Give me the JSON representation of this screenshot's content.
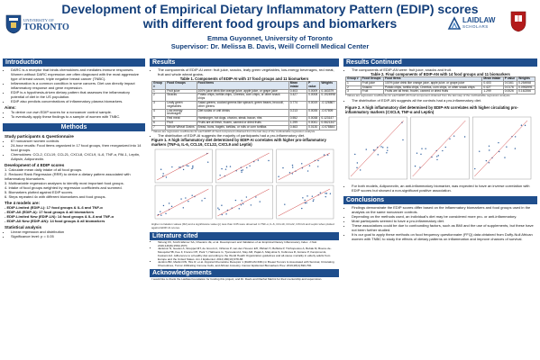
{
  "header": {
    "title_line1": "Development of Empirical Dietary Inflammatory Pattern (EDIP) scores",
    "title_line2": "with different food groups and biomarkers",
    "author": "Emma Guyonnet, University of Toronto",
    "supervisor": "Supervisor: Dr. Melissa B. Davis, Weill Cornell Medical Center",
    "logo_left_text": "UNIVERSITY OF",
    "logo_left_text2": "TORONTO",
    "logo_right_text": "LAIDLAW",
    "logo_right_text2": "SCHOLARS"
  },
  "introduction": {
    "heading": "Introduction",
    "bullets": [
      "DARC is a receptor that binds chemokines and mediates immune responses. Women without DARC expression are often diagnosed with the most aggressive type of breast cancer, triple negative breast cancer (TNBC).",
      "Inflammation is a common condition in some cancers. Diet can directly impact inflammatory response and gene expression.",
      "EDIP is a hypothesis-driven dietary pattern that assesses the inflammatory potential of diet in the US population.",
      "EDIP also predicts concentrations of inflammatory plasma biomarkers."
    ],
    "aims_heading": "Aims:",
    "aims": [
      "To derive our own EDIP scores for a noncancer control sample.",
      "To eventually apply these findings to a sample of women with TNBC."
    ]
  },
  "methods": {
    "heading": "Methods",
    "study_heading": "Study participants & Questionnaire",
    "study_bullets": [
      "67 noncancer women controls",
      "24-hour recalls: Food items organized in 17 food groups, then reorganized into 14 food groups.",
      "Chemokines: CCL2, CCL19, CCL21, CXCL8, CXCL9, IL-6, TNF-α, PAI-1, Leptin, Adipsin, Adiponectin."
    ],
    "dev_heading": "Development of 4 EDIP scores",
    "dev_steps": [
      "1. Calculate mean daily intake of all food groups.",
      "2. Reduced Rank Regression (RRR) to derive a dietary pattern associated with inflammatory biomarkers.",
      "3. Multivariable regression analyses to identify most important food groups.",
      "4. Intake of food groups weighted by regression coefficients and summed.",
      "5. Biomarkers plotted against EDIP scores.",
      "6. Steps repeated 4x with different biomarkers and food groups."
    ],
    "models_heading": "The 4 models are:",
    "models": [
      "- EDIP-Limited (EDIP-L): 17 food groups & IL-6 and TNF-α",
      "- EDIP-All (EDIP-A): 17 food groups & all biomarkers",
      "- EDIP-Limited New (EDIP-LN): 14 food groups & IL-6 and TNF-α",
      "- EDIP-All New (EDIP-AN): 14 food groups & all biomarkers"
    ],
    "stats_heading": "Statistical analysis",
    "stats": [
      "Linear regression and distribution",
      "Significance level: p = 0.05"
    ]
  },
  "results": {
    "heading": "Results",
    "bullet1": "The components of EDIP-AI were: fruit juice, snacks, leafy green vegetables, low-energy beverages, red meat, fruit and whole wheat grains.",
    "table1_title": "Table 1. Components of EDIP-AI with 17 food groups and 11 biomarkers",
    "table1_headers": [
      "Group #",
      "Food Groups",
      "Food Items",
      "Mean intake",
      "P value",
      "Weights"
    ],
    "table1_rows": [
      [
        "1",
        "Fruit juice",
        "100% juice drink like orange juice, apple juice, or grape juice",
        "0.403",
        "0.0009",
        "0.163379"
      ],
      [
        "2",
        "Snacks",
        "Potato chips, tortilla chips, Cheetos, corn chips, or other snack chips",
        "0.427",
        "0.0008",
        "0.1924998"
      ],
      [
        "3",
        "Leafy green vegetables",
        "Salad greens, cooked greens like spinach, green beans, broccoli, other greens",
        "0.774",
        "0.0019",
        "-0.126867"
      ],
      [
        "4",
        "Low-energy beverages",
        "Diet sodas or unit drinks",
        "0.213",
        "0.0035",
        "-0.07809"
      ],
      [
        "5",
        "Red meat",
        "Hamburger, hot dogs, chorizo, steak, bacon, ribs",
        "0.552",
        "0.0038",
        "0.123147"
      ],
      [
        "6",
        "Fruit",
        "Fruits are all fresh, frozen, canned or dried fruits",
        "1.299",
        "0.0041",
        "0.0621347"
      ],
      [
        "7",
        "Whole Wheat Grains",
        "Bread, buns, bagels, tortillas, or rolls or corn tortillas",
        "0.463",
        "0.0130",
        "-0.078844"
      ]
    ],
    "table1_note": "* Values are regression coefficients for each EDIP-AI food component obtained from the last step of the multivariable regression analysis.",
    "bullet2": "The distribution of EDIP-AI suggests the majority of participants had a pro-inflammatory diet.",
    "fig1_title": "Figure 1. A high inflammatory diet determined by EDIP-AI correlates with higher pro-inflammatory markers (TNF-α, IL-6, CCL19, CCL22, CXCL9 and Leptin)",
    "fig1_caption": "Higher correlation values (R2) and a significance value (p) less than 0.05 were observed in TNF-α, IL-6, CCL19, CCL22, CXCL9 and Leptin when plotted against EDIP-AI scores."
  },
  "literature": {
    "heading": "Literature cited",
    "refs": [
      "Tabung FK, Smith-Warner SA, Chavarro JE, et al. Development and Validation of an Empirical Dietary Inflammatory Index. J Nutr. 2016;146(8):1560-1570.",
      "Jankovic N, Geelen A, Streppel MT, de Groot LC, Orfanos P, van den Hooven EH, Pikhart H, Boffetta P, Trichopoulou A, Bobak M, Bueno-de-Mesquita HB, Kee F, Franco OH, Park Y, Hallmans G, Tjonneland A, May AM, Pajak A, Malyutina S, Kubinova R, Amiano P, Kampman E, Feskens EJ. Adherence to a healthy diet according to the World Health Organization guidelines and all-cause mortality in elderly adults from Europe and the United States. Am J Epidemiol. 2014;180(10):978-88.",
      "Jenkins BD, Martini RN, Hire R, et al. Atypical Chemokine Receptor 1 (DARC/ACKR1) in Breast Tumors Is Associated with Survival, Circulating Chemokines, Tumor-Infiltrating Immune Cells, and African Ancestry. Cancer Epidemiol Biomarkers Prev. 2019;28(4):690-700."
    ],
    "ack_heading": "Acknowledgements",
    "ack_text": "I would like to thank the Laidlaw Foundation for funding this project, and Dr. Davis and Rachel Martini for their mentorship and supervision."
  },
  "results_continued": {
    "heading": "Results Continued",
    "bullet1": "The components of EDIP-AN were: fruit juice, snacks and fruit.",
    "table2_title": "Table 2. Final components of EDIP-AN with 14 food groups and 11 biomarkers",
    "table2_headers": [
      "Group #",
      "Food Groups",
      "Food Items",
      "Mean intake",
      "P value",
      "Weights"
    ],
    "table2_rows": [
      [
        "1",
        "Fruit juice",
        "100% juice drink like orange juice, apple juice, or grape juice",
        "0.403",
        "0.0161",
        "0.254958"
      ],
      [
        "2",
        "Snacks",
        "Potato chips, tortilla chips, Cheetos, corn chips, or other snack chips",
        "0.427",
        "0.0176",
        "0.0953991"
      ],
      [
        "3",
        "Fruit",
        "Fruits are all fresh, frozen, canned or dried fruits",
        "1.299",
        "0.0026",
        "0.162356"
      ]
    ],
    "table2_note": "* Values are regression coefficients for each EDIP-AN food component obtained from the last step of the multivariable regression analysis.",
    "bullet2": "The distribution of EDIP-AN suggests all the controls had a pro-inflammatory diet.",
    "fig2_title": "Figure 2. A high inflammatory diet determined by EDIP-AN correlates with higher circulating pro-inflammatory markers (CXCL9, TNF-α and Leptin)",
    "bullet3": "For both models, Adiponectin, an anti-inflammatory biomarker, was expected to have an inverse correlation with EDIP scores but showed a non-significant positive association."
  },
  "conclusions": {
    "heading": "Conclusions",
    "bullets": [
      "Findings demonstrate the EDIP scores differ based on the inflammatory biomarkers and food groups used in the analysis on the same noncancer controls.",
      "Depending on the methods used, an individual's diet may be considered more pro- or anti-inflammatory.",
      "Most participants seemed to have a pro-inflammatory diet.",
      "These associations could be due to confounding factors, such as BMI and the use of supplements, but these have not been further studied.",
      "It is our goal to apply these methods on food frequency questionnaire (FFQ) data obtained from Duffy-Null African women with TNBC to study the effects of dietary patterns on inflammation and improve chances of survival."
    ]
  },
  "colors": {
    "title_blue": "#123e7a",
    "section_blue": "#1f4e8c",
    "border_blue": "#1f4e8c"
  }
}
